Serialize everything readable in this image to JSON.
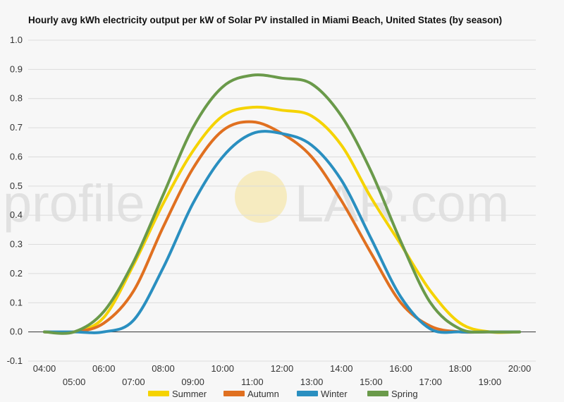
{
  "chart_data": {
    "type": "line",
    "title": "Hourly avg kWh electricity output per kW of Solar PV installed in Miami Beach, United States (by season)",
    "xlabel": "",
    "ylabel": "",
    "ylim": [
      -0.1,
      1.0
    ],
    "yticks": [
      "-0.1",
      "0.0",
      "0.1",
      "0.2",
      "0.3",
      "0.4",
      "0.5",
      "0.6",
      "0.7",
      "0.8",
      "0.9",
      "1.0"
    ],
    "x": [
      "04:00",
      "05:00",
      "06:00",
      "07:00",
      "08:00",
      "09:00",
      "10:00",
      "11:00",
      "12:00",
      "13:00",
      "14:00",
      "15:00",
      "16:00",
      "17:00",
      "18:00",
      "19:00",
      "20:00"
    ],
    "grid": true,
    "legend_position": "bottom",
    "series": [
      {
        "name": "Summer",
        "color": "#f5d300",
        "values": [
          0.0,
          0.0,
          0.05,
          0.23,
          0.44,
          0.62,
          0.74,
          0.77,
          0.76,
          0.74,
          0.64,
          0.46,
          0.3,
          0.14,
          0.03,
          0.0,
          0.0
        ]
      },
      {
        "name": "Autumn",
        "color": "#e07020",
        "values": [
          0.0,
          0.0,
          0.03,
          0.14,
          0.36,
          0.56,
          0.69,
          0.72,
          0.68,
          0.6,
          0.45,
          0.27,
          0.1,
          0.02,
          0.0,
          0.0,
          0.0
        ]
      },
      {
        "name": "Winter",
        "color": "#2a8fc0",
        "values": [
          0.0,
          0.0,
          0.0,
          0.04,
          0.22,
          0.44,
          0.6,
          0.68,
          0.68,
          0.64,
          0.52,
          0.32,
          0.12,
          0.01,
          0.0,
          0.0,
          0.0
        ]
      },
      {
        "name": "Spring",
        "color": "#6a9a4a",
        "values": [
          0.0,
          0.0,
          0.07,
          0.24,
          0.47,
          0.7,
          0.84,
          0.88,
          0.87,
          0.85,
          0.74,
          0.55,
          0.31,
          0.1,
          0.01,
          0.0,
          0.0
        ]
      }
    ]
  },
  "watermark": {
    "left": "profile",
    "right": "LAR.com",
    "sun_color": "#f5e6a8"
  }
}
